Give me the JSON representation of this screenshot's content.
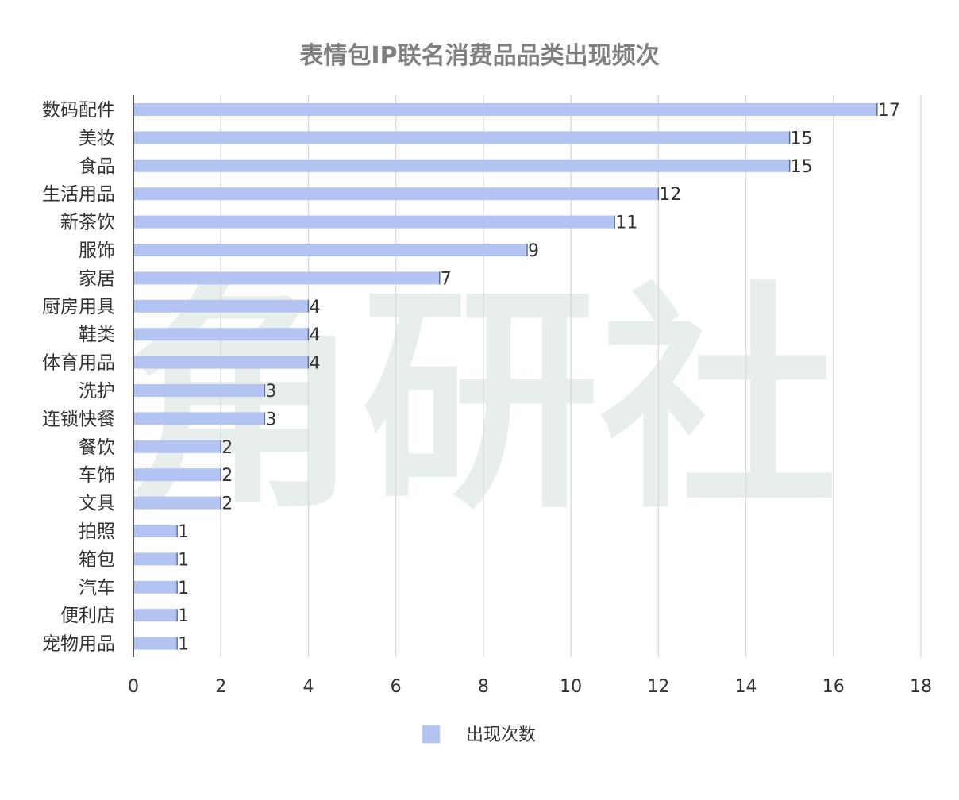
{
  "chart_data": {
    "type": "bar",
    "orientation": "horizontal",
    "title": "表情包IP联名消费品品类出现频次",
    "categories": [
      "数码配件",
      "美妆",
      "食品",
      "生活用品",
      "新茶饮",
      "服饰",
      "家居",
      "厨房用具",
      "鞋类",
      "体育用品",
      "洗护",
      "连锁快餐",
      "餐饮",
      "车饰",
      "文具",
      "拍照",
      "箱包",
      "汽车",
      "便利店",
      "宠物用品"
    ],
    "series": [
      {
        "name": "出现次数",
        "values": [
          17,
          15,
          15,
          12,
          11,
          9,
          7,
          4,
          4,
          4,
          3,
          3,
          2,
          2,
          2,
          1,
          1,
          1,
          1,
          1
        ]
      }
    ],
    "xlim": [
      0,
      18
    ],
    "xticks": [
      0,
      2,
      4,
      6,
      8,
      10,
      12,
      14,
      16,
      18
    ],
    "grid": "vertical",
    "legend_position": "bottom",
    "bar_color": "#b3c3f2",
    "bar_border_color": "#5a6e9e",
    "grid_color": "#dcdcdc",
    "watermark_text": "角研社"
  }
}
